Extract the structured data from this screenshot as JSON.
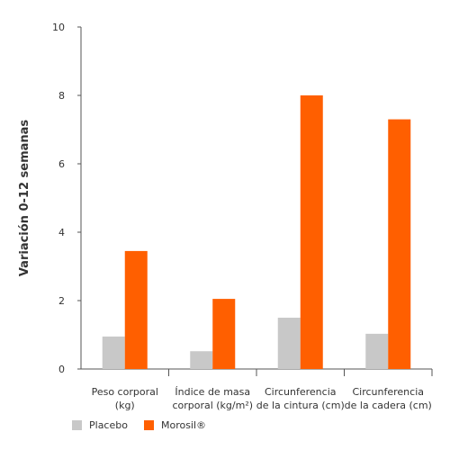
{
  "chart_data": {
    "type": "bar",
    "categories": [
      [
        "Peso corporal",
        "(kg)"
      ],
      [
        "Índice de masa",
        "corporal (kg/m²)"
      ],
      [
        "Circunferencia",
        "de la cintura (cm)"
      ],
      [
        "Circunferencia",
        "de la cadera (cm)"
      ]
    ],
    "series": [
      {
        "name": "Placebo",
        "color": "#c8c8c8",
        "values": [
          0.95,
          0.52,
          1.5,
          1.03
        ]
      },
      {
        "name": "Morosil®",
        "color": "#ff5f00",
        "values": [
          3.45,
          2.05,
          8.0,
          7.3
        ]
      }
    ],
    "ylabel": "Variación 0-12 semanas",
    "xlabel": "",
    "ylim": [
      0,
      10
    ],
    "yticks": [
      "0",
      "2",
      "4",
      "6",
      "8",
      "10"
    ],
    "grid": false,
    "legend_position": "bottom-left"
  }
}
